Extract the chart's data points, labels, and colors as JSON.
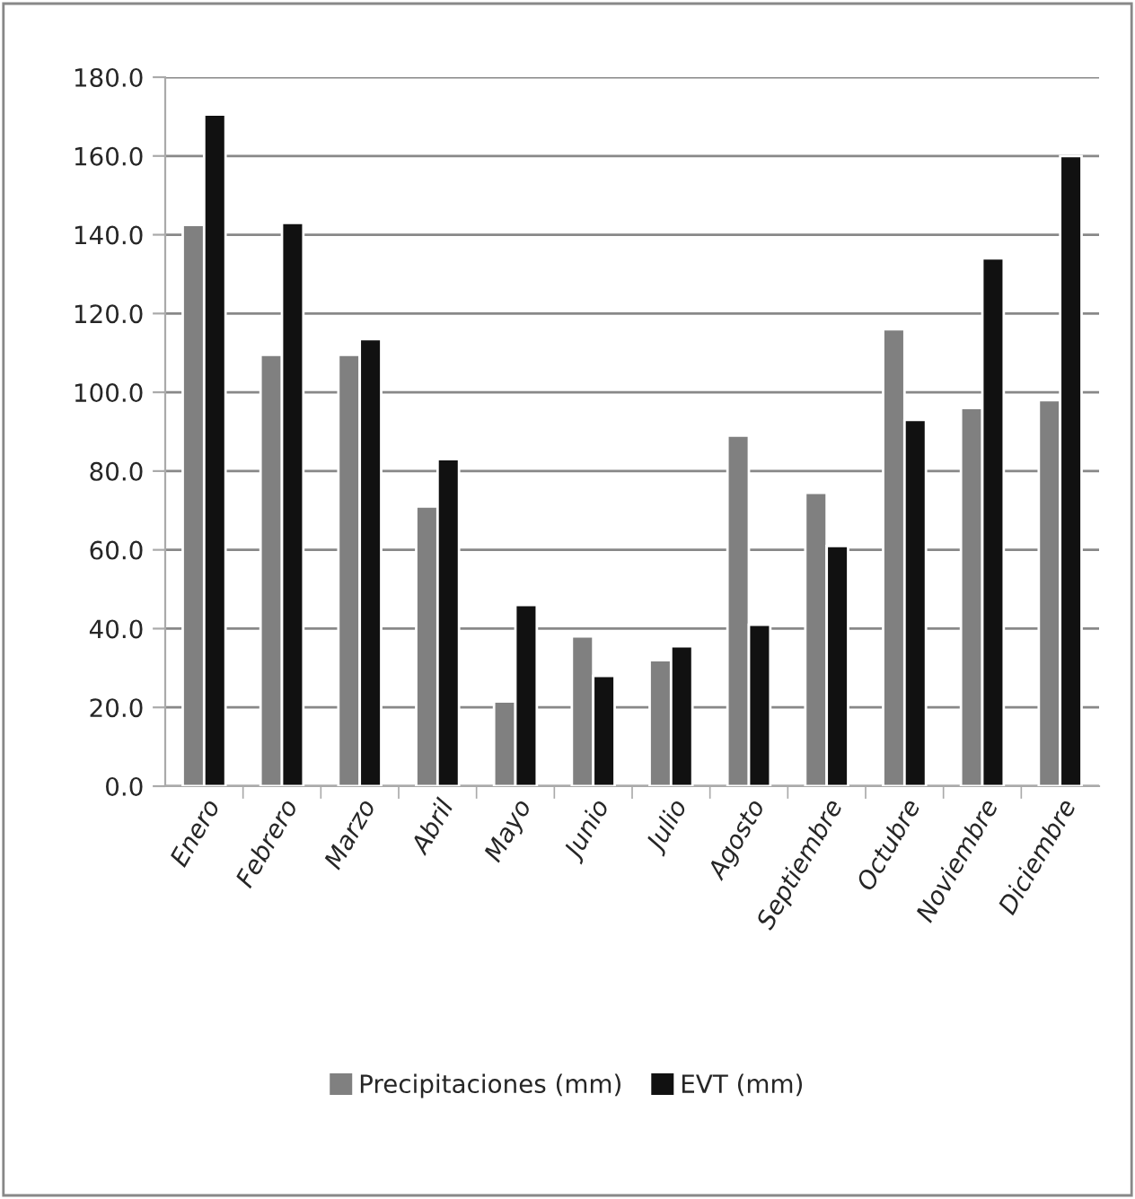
{
  "chart_data": {
    "type": "bar",
    "categories": [
      "Enero",
      "Febrero",
      "Marzo",
      "Abril",
      "Mayo",
      "Junio",
      "Julio",
      "Agosto",
      "Septiembre",
      "Octubre",
      "Noviembre",
      "Diciembre"
    ],
    "series": [
      {
        "name": "Precipitaciones (mm)",
        "color": "#808080",
        "values": [
          142.5,
          109.5,
          109.5,
          71,
          21.5,
          38,
          32,
          89,
          74.5,
          116,
          96,
          98
        ]
      },
      {
        "name": "EVT (mm)",
        "color": "#111111",
        "values": [
          170.5,
          143,
          113.5,
          83,
          46,
          28,
          35.5,
          41,
          61,
          93,
          134,
          160
        ]
      }
    ],
    "ylim": [
      0,
      180
    ],
    "yticks": [
      {
        "value": 0,
        "label": "0.0"
      },
      {
        "value": 20,
        "label": "20.0"
      },
      {
        "value": 40,
        "label": "40.0"
      },
      {
        "value": 60,
        "label": "60.0"
      },
      {
        "value": 80,
        "label": "80.0"
      },
      {
        "value": 100,
        "label": "100.0"
      },
      {
        "value": 120,
        "label": "120.0"
      },
      {
        "value": 140,
        "label": "140.0"
      },
      {
        "value": 160,
        "label": "160.0"
      },
      {
        "value": 180,
        "label": "180.0"
      }
    ],
    "grid": "y",
    "legend": "bottom"
  }
}
